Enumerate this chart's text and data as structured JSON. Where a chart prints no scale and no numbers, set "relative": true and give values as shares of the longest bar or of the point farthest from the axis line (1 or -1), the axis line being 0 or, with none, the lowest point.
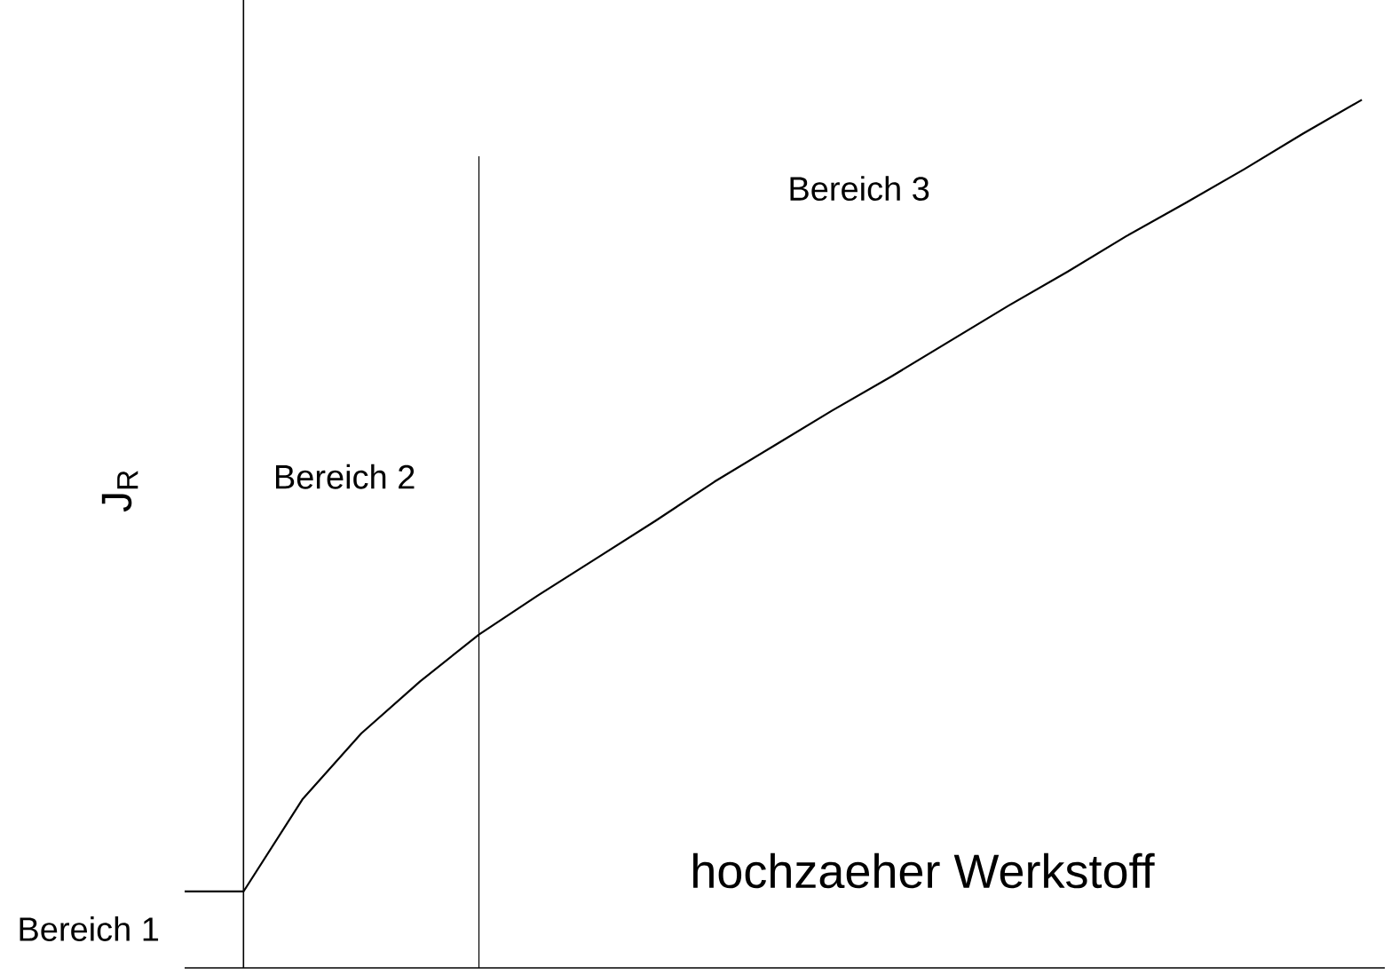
{
  "chart_data": {
    "type": "line",
    "relative": true,
    "ylabel": "J$_{R}$",
    "categories": [
      null,
      null,
      null,
      null,
      null,
      null,
      null,
      null,
      null,
      null,
      null,
      null,
      null,
      null,
      null,
      null,
      null,
      null,
      null,
      null,
      null
    ],
    "series": [
      {
        "color": "#000000",
        "values": [
          0.088,
          0.088,
          0.194,
          0.27,
          0.33,
          0.384,
          0.429,
          0.472,
          0.515,
          0.56,
          0.601,
          0.642,
          0.681,
          0.722,
          0.763,
          0.802,
          0.843,
          0.881,
          0.92,
          0.961,
          1
        ]
      }
    ],
    "annotations": [
      "Bereich 1",
      "Bereich 2",
      "Bereich 3",
      "hochzaeher Werkstoff"
    ],
    "marker": "none",
    "line_style": "solid"
  }
}
